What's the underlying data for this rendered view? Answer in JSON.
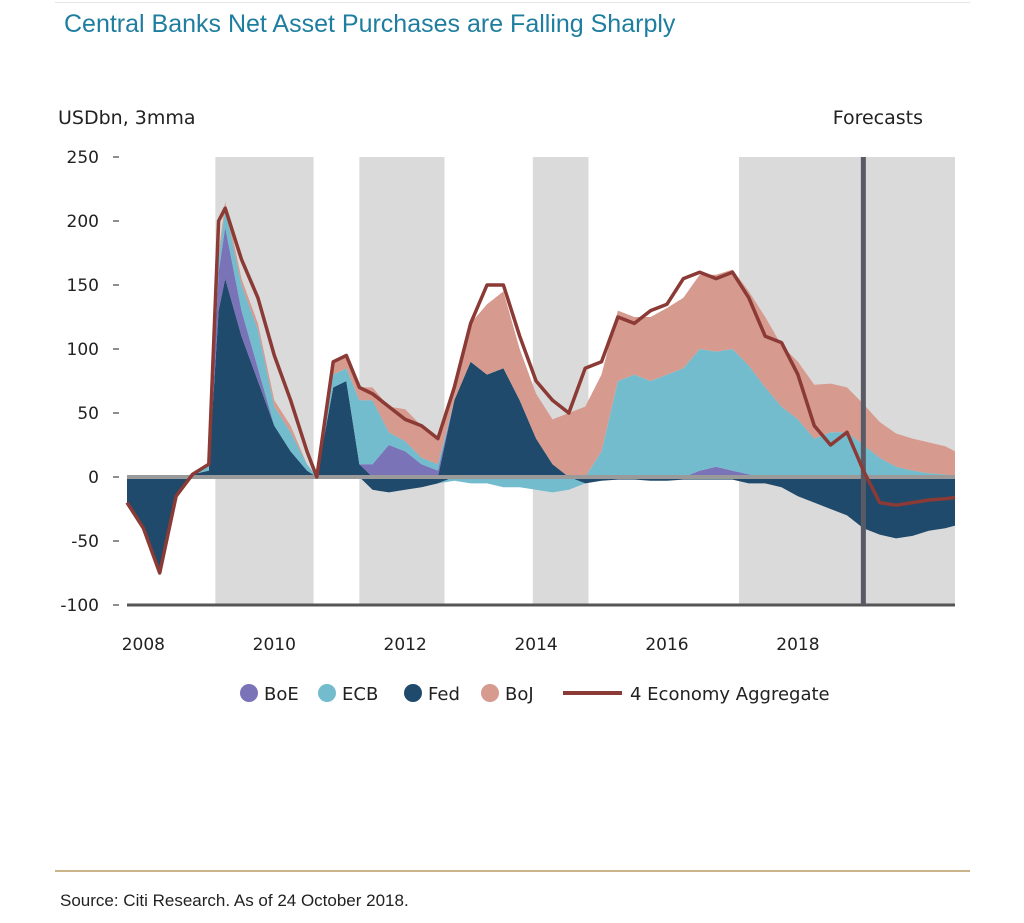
{
  "header": {
    "title": "Central Banks Net Asset Purchases are Falling Sharply"
  },
  "footer": {
    "source": "Source: Citi Research. As of 24 October 2018."
  },
  "chart_data": {
    "type": "area",
    "title": "Central Banks Net Asset Purchases are Falling Sharply",
    "ylabel": "USDbn, 3mma",
    "xlabel": "",
    "forecast_label": "Forecasts",
    "forecast_start": 2019.0,
    "xlim": [
      2007.75,
      2020.4
    ],
    "ylim": [
      -100,
      250
    ],
    "yticks": [
      250,
      200,
      150,
      100,
      50,
      0,
      -50,
      -100
    ],
    "xticks": [
      2008,
      2010,
      2012,
      2014,
      2016,
      2018
    ],
    "shaded_bands": [
      [
        2009.1,
        2010.6
      ],
      [
        2011.3,
        2012.6
      ],
      [
        2013.95,
        2014.8
      ],
      [
        2017.1,
        2020.4
      ]
    ],
    "colors": {
      "BoE": "#7a73b8",
      "ECB": "#72bccd",
      "Fed": "#1f4a6b",
      "BoJ": "#d69a8f",
      "Aggregate": "#8b3a35",
      "band": "#dadada",
      "forecast_line": "#5a5a66",
      "zero_line": "#9a9a9a"
    },
    "x": [
      2007.75,
      2008.0,
      2008.25,
      2008.5,
      2008.75,
      2009.0,
      2009.15,
      2009.25,
      2009.5,
      2009.75,
      2010.0,
      2010.25,
      2010.5,
      2010.65,
      2010.9,
      2011.1,
      2011.3,
      2011.5,
      2011.75,
      2012.0,
      2012.25,
      2012.5,
      2012.75,
      2013.0,
      2013.25,
      2013.5,
      2013.75,
      2014.0,
      2014.25,
      2014.5,
      2014.75,
      2015.0,
      2015.25,
      2015.5,
      2015.75,
      2016.0,
      2016.25,
      2016.5,
      2016.75,
      2017.0,
      2017.25,
      2017.5,
      2017.75,
      2018.0,
      2018.25,
      2018.5,
      2018.75,
      2019.0,
      2019.25,
      2019.5,
      2019.75,
      2020.0,
      2020.25,
      2020.4
    ],
    "series": [
      {
        "name": "Fed",
        "values": [
          -20,
          -40,
          -75,
          -15,
          2,
          5,
          130,
          155,
          110,
          75,
          40,
          20,
          5,
          0,
          70,
          75,
          10,
          -10,
          -12,
          -10,
          -8,
          -5,
          60,
          90,
          80,
          85,
          60,
          30,
          10,
          0,
          -5,
          -3,
          -2,
          -2,
          -3,
          -3,
          -2,
          -2,
          -2,
          -2,
          -5,
          -5,
          -8,
          -15,
          -20,
          -25,
          -30,
          -40,
          -45,
          -48,
          -46,
          -42,
          -40,
          -38
        ]
      },
      {
        "name": "BoE",
        "values": [
          0,
          0,
          0,
          0,
          0,
          0,
          30,
          40,
          20,
          10,
          0,
          0,
          0,
          0,
          0,
          0,
          0,
          10,
          25,
          20,
          10,
          5,
          0,
          0,
          0,
          0,
          0,
          0,
          0,
          0,
          0,
          0,
          0,
          0,
          0,
          0,
          0,
          5,
          8,
          5,
          2,
          0,
          0,
          0,
          0,
          0,
          0,
          0,
          0,
          0,
          0,
          0,
          0,
          0
        ]
      },
      {
        "name": "ECB",
        "values": [
          0,
          0,
          0,
          0,
          0,
          5,
          10,
          15,
          20,
          30,
          15,
          15,
          5,
          0,
          10,
          10,
          50,
          50,
          10,
          8,
          5,
          5,
          -3,
          -5,
          -5,
          -8,
          -8,
          -10,
          -12,
          -10,
          0,
          20,
          75,
          80,
          75,
          80,
          85,
          95,
          90,
          95,
          85,
          70,
          55,
          45,
          30,
          35,
          35,
          25,
          15,
          8,
          5,
          3,
          2,
          0
        ]
      },
      {
        "name": "BoJ",
        "values": [
          0,
          0,
          0,
          0,
          0,
          0,
          5,
          5,
          5,
          5,
          5,
          5,
          0,
          0,
          10,
          10,
          10,
          10,
          20,
          25,
          25,
          20,
          15,
          30,
          55,
          60,
          40,
          35,
          35,
          50,
          55,
          60,
          55,
          45,
          50,
          52,
          55,
          58,
          60,
          62,
          58,
          55,
          48,
          45,
          42,
          38,
          35,
          32,
          28,
          26,
          25,
          24,
          22,
          20
        ]
      },
      {
        "name": "4 Economy Aggregate",
        "values": [
          -20,
          -40,
          -75,
          -15,
          2,
          10,
          200,
          210,
          170,
          140,
          95,
          60,
          20,
          0,
          90,
          95,
          70,
          65,
          55,
          45,
          40,
          30,
          70,
          120,
          150,
          150,
          110,
          75,
          60,
          50,
          85,
          90,
          125,
          120,
          130,
          135,
          155,
          160,
          155,
          160,
          140,
          110,
          105,
          80,
          40,
          25,
          35,
          5,
          -20,
          -22,
          -20,
          -18,
          -17,
          -16
        ]
      }
    ],
    "legend": [
      "BoE",
      "ECB",
      "Fed",
      "BoJ",
      "4 Economy Aggregate"
    ],
    "legend_position": "bottom"
  }
}
